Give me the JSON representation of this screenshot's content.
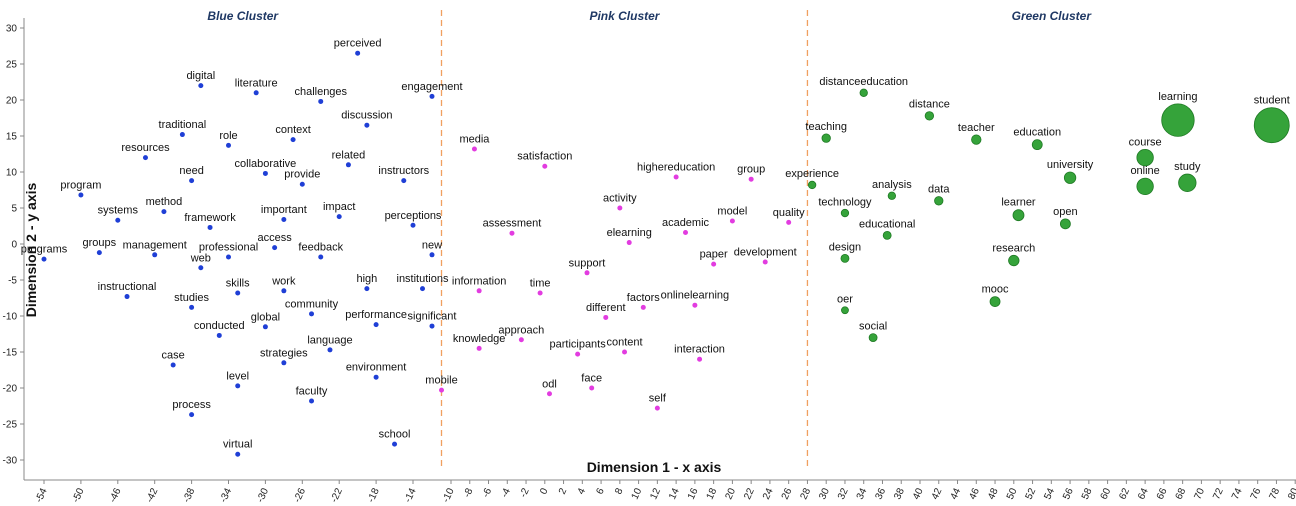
{
  "chart_data": {
    "type": "scatter",
    "xlabel": "Dimension 1 - x axis",
    "ylabel": "Dimension 2 - y axis",
    "xlim": [
      -56,
      81
    ],
    "ylim": [
      -32,
      31
    ],
    "xticks": [
      -54,
      -50,
      -46,
      -42,
      -38,
      -34,
      -30,
      -26,
      -22,
      -18,
      -14,
      -10,
      -8,
      -6,
      -4,
      -2,
      0,
      2,
      4,
      6,
      8,
      10,
      12,
      14,
      16,
      18,
      20,
      22,
      24,
      26,
      28,
      30,
      32,
      34,
      36,
      38,
      40,
      42,
      44,
      46,
      48,
      50,
      52,
      54,
      56,
      58,
      60,
      62,
      64,
      66,
      68,
      70,
      72,
      74,
      76,
      78,
      80
    ],
    "yticks": [
      -30,
      -25,
      -20,
      -15,
      -10,
      -5,
      0,
      5,
      10,
      15,
      20,
      25,
      30
    ],
    "separators_x": [
      -11,
      28
    ],
    "clusters": [
      {
        "name": "Blue Cluster",
        "color": "#1f3fd6"
      },
      {
        "name": "Pink Cluster",
        "color": "#e23ce0"
      },
      {
        "name": "Green Cluster",
        "color": "#35a33a"
      }
    ],
    "points": [
      {
        "label": "perceived",
        "x": -20,
        "y": 26.5,
        "cluster": 0,
        "size": 1
      },
      {
        "label": "digital",
        "x": -37,
        "y": 22,
        "cluster": 0,
        "size": 1
      },
      {
        "label": "literature",
        "x": -31,
        "y": 21,
        "cluster": 0,
        "size": 1
      },
      {
        "label": "challenges",
        "x": -24,
        "y": 19.8,
        "cluster": 0,
        "size": 1
      },
      {
        "label": "engagement",
        "x": -12,
        "y": 20.5,
        "cluster": 0,
        "size": 1
      },
      {
        "label": "discussion",
        "x": -19,
        "y": 16.5,
        "cluster": 0,
        "size": 1
      },
      {
        "label": "traditional",
        "x": -39,
        "y": 15.2,
        "cluster": 0,
        "size": 1
      },
      {
        "label": "role",
        "x": -34,
        "y": 13.7,
        "cluster": 0,
        "size": 1
      },
      {
        "label": "context",
        "x": -27,
        "y": 14.5,
        "cluster": 0,
        "size": 1
      },
      {
        "label": "resources",
        "x": -43,
        "y": 12,
        "cluster": 0,
        "size": 1
      },
      {
        "label": "related",
        "x": -21,
        "y": 11,
        "cluster": 0,
        "size": 1
      },
      {
        "label": "collaborative",
        "x": -30,
        "y": 9.8,
        "cluster": 0,
        "size": 1
      },
      {
        "label": "provide",
        "x": -26,
        "y": 8.3,
        "cluster": 0,
        "size": 1
      },
      {
        "label": "need",
        "x": -38,
        "y": 8.8,
        "cluster": 0,
        "size": 1
      },
      {
        "label": "instructors",
        "x": -15,
        "y": 8.8,
        "cluster": 0,
        "size": 1
      },
      {
        "label": "program",
        "x": -50,
        "y": 6.8,
        "cluster": 0,
        "size": 1
      },
      {
        "label": "systems",
        "x": -46,
        "y": 3.3,
        "cluster": 0,
        "size": 1
      },
      {
        "label": "method",
        "x": -41,
        "y": 4.5,
        "cluster": 0,
        "size": 1
      },
      {
        "label": "framework",
        "x": -36,
        "y": 2.3,
        "cluster": 0,
        "size": 1
      },
      {
        "label": "important",
        "x": -28,
        "y": 3.4,
        "cluster": 0,
        "size": 1
      },
      {
        "label": "impact",
        "x": -22,
        "y": 3.8,
        "cluster": 0,
        "size": 1
      },
      {
        "label": "perceptions",
        "x": -14,
        "y": 2.6,
        "cluster": 0,
        "size": 1
      },
      {
        "label": "access",
        "x": -29,
        "y": -0.5,
        "cluster": 0,
        "size": 1
      },
      {
        "label": "programs",
        "x": -54,
        "y": -2.1,
        "cluster": 0,
        "size": 1
      },
      {
        "label": "groups",
        "x": -48,
        "y": -1.2,
        "cluster": 0,
        "size": 1
      },
      {
        "label": "management",
        "x": -42,
        "y": -1.5,
        "cluster": 0,
        "size": 1
      },
      {
        "label": "professional",
        "x": -34,
        "y": -1.8,
        "cluster": 0,
        "size": 1
      },
      {
        "label": "web",
        "x": -37,
        "y": -3.3,
        "cluster": 0,
        "size": 1
      },
      {
        "label": "feedback",
        "x": -24,
        "y": -1.8,
        "cluster": 0,
        "size": 1
      },
      {
        "label": "new",
        "x": -12,
        "y": -1.5,
        "cluster": 0,
        "size": 1
      },
      {
        "label": "instructional",
        "x": -45,
        "y": -7.3,
        "cluster": 0,
        "size": 1
      },
      {
        "label": "skills",
        "x": -33,
        "y": -6.8,
        "cluster": 0,
        "size": 1
      },
      {
        "label": "work",
        "x": -28,
        "y": -6.5,
        "cluster": 0,
        "size": 1
      },
      {
        "label": "high",
        "x": -19,
        "y": -6.2,
        "cluster": 0,
        "size": 1
      },
      {
        "label": "institutions",
        "x": -13,
        "y": -6.2,
        "cluster": 0,
        "size": 1
      },
      {
        "label": "studies",
        "x": -38,
        "y": -8.8,
        "cluster": 0,
        "size": 1
      },
      {
        "label": "community",
        "x": -25,
        "y": -9.7,
        "cluster": 0,
        "size": 1
      },
      {
        "label": "global",
        "x": -30,
        "y": -11.5,
        "cluster": 0,
        "size": 1
      },
      {
        "label": "performance",
        "x": -18,
        "y": -11.2,
        "cluster": 0,
        "size": 1
      },
      {
        "label": "significant",
        "x": -12,
        "y": -11.4,
        "cluster": 0,
        "size": 1
      },
      {
        "label": "conducted",
        "x": -35,
        "y": -12.7,
        "cluster": 0,
        "size": 1
      },
      {
        "label": "language",
        "x": -23,
        "y": -14.7,
        "cluster": 0,
        "size": 1
      },
      {
        "label": "strategies",
        "x": -28,
        "y": -16.5,
        "cluster": 0,
        "size": 1
      },
      {
        "label": "case",
        "x": -40,
        "y": -16.8,
        "cluster": 0,
        "size": 1
      },
      {
        "label": "environment",
        "x": -18,
        "y": -18.5,
        "cluster": 0,
        "size": 1
      },
      {
        "label": "level",
        "x": -33,
        "y": -19.7,
        "cluster": 0,
        "size": 1
      },
      {
        "label": "faculty",
        "x": -25,
        "y": -21.8,
        "cluster": 0,
        "size": 1
      },
      {
        "label": "process",
        "x": -38,
        "y": -23.7,
        "cluster": 0,
        "size": 1
      },
      {
        "label": "school",
        "x": -16,
        "y": -27.8,
        "cluster": 0,
        "size": 1
      },
      {
        "label": "virtual",
        "x": -33,
        "y": -29.2,
        "cluster": 0,
        "size": 1
      },
      {
        "label": "media",
        "x": -7.5,
        "y": 13.2,
        "cluster": 1,
        "size": 1
      },
      {
        "label": "satisfaction",
        "x": 0,
        "y": 10.8,
        "cluster": 1,
        "size": 1
      },
      {
        "label": "highereducation",
        "x": 14,
        "y": 9.3,
        "cluster": 1,
        "size": 1
      },
      {
        "label": "group",
        "x": 22,
        "y": 9,
        "cluster": 1,
        "size": 1
      },
      {
        "label": "activity",
        "x": 8,
        "y": 5,
        "cluster": 1,
        "size": 1
      },
      {
        "label": "model",
        "x": 20,
        "y": 3.2,
        "cluster": 1,
        "size": 1
      },
      {
        "label": "quality",
        "x": 26,
        "y": 3,
        "cluster": 1,
        "size": 1
      },
      {
        "label": "assessment",
        "x": -3.5,
        "y": 1.5,
        "cluster": 1,
        "size": 1
      },
      {
        "label": "elearning",
        "x": 9,
        "y": 0.2,
        "cluster": 1,
        "size": 1
      },
      {
        "label": "academic",
        "x": 15,
        "y": 1.6,
        "cluster": 1,
        "size": 1
      },
      {
        "label": "paper",
        "x": 18,
        "y": -2.8,
        "cluster": 1,
        "size": 1
      },
      {
        "label": "development",
        "x": 23.5,
        "y": -2.5,
        "cluster": 1,
        "size": 1
      },
      {
        "label": "support",
        "x": 4.5,
        "y": -4,
        "cluster": 1,
        "size": 1
      },
      {
        "label": "information",
        "x": -7,
        "y": -6.5,
        "cluster": 1,
        "size": 1
      },
      {
        "label": "time",
        "x": -0.5,
        "y": -6.8,
        "cluster": 1,
        "size": 1
      },
      {
        "label": "different",
        "x": 6.5,
        "y": -10.2,
        "cluster": 1,
        "size": 1
      },
      {
        "label": "factors",
        "x": 10.5,
        "y": -8.8,
        "cluster": 1,
        "size": 1
      },
      {
        "label": "onlinelearning",
        "x": 16,
        "y": -8.5,
        "cluster": 1,
        "size": 1
      },
      {
        "label": "approach",
        "x": -2.5,
        "y": -13.3,
        "cluster": 1,
        "size": 1
      },
      {
        "label": "knowledge",
        "x": -7,
        "y": -14.5,
        "cluster": 1,
        "size": 1
      },
      {
        "label": "participants",
        "x": 3.5,
        "y": -15.3,
        "cluster": 1,
        "size": 1
      },
      {
        "label": "content",
        "x": 8.5,
        "y": -15,
        "cluster": 1,
        "size": 1
      },
      {
        "label": "interaction",
        "x": 16.5,
        "y": -16,
        "cluster": 1,
        "size": 1
      },
      {
        "label": "mobile",
        "x": -11,
        "y": -20.3,
        "cluster": 1,
        "size": 1
      },
      {
        "label": "odl",
        "x": 0.5,
        "y": -20.8,
        "cluster": 1,
        "size": 1
      },
      {
        "label": "face",
        "x": 5,
        "y": -20,
        "cluster": 1,
        "size": 1
      },
      {
        "label": "self",
        "x": 12,
        "y": -22.8,
        "cluster": 1,
        "size": 1
      },
      {
        "label": "distanceeducation",
        "x": 34,
        "y": 21,
        "cluster": 2,
        "size": 1.5
      },
      {
        "label": "distance",
        "x": 41,
        "y": 17.8,
        "cluster": 2,
        "size": 1.7
      },
      {
        "label": "teaching",
        "x": 30,
        "y": 14.7,
        "cluster": 2,
        "size": 1.7
      },
      {
        "label": "teacher",
        "x": 46,
        "y": 14.5,
        "cluster": 2,
        "size": 1.9
      },
      {
        "label": "education",
        "x": 52.5,
        "y": 13.8,
        "cluster": 2,
        "size": 2
      },
      {
        "label": "learning",
        "x": 67.5,
        "y": 17.2,
        "cluster": 2,
        "size": 6.5
      },
      {
        "label": "student",
        "x": 77.5,
        "y": 16.5,
        "cluster": 2,
        "size": 7
      },
      {
        "label": "course",
        "x": 64,
        "y": 12,
        "cluster": 2,
        "size": 3.3
      },
      {
        "label": "university",
        "x": 56,
        "y": 9.2,
        "cluster": 2,
        "size": 2.3
      },
      {
        "label": "experience",
        "x": 28.5,
        "y": 8.2,
        "cluster": 2,
        "size": 1.5
      },
      {
        "label": "online",
        "x": 64,
        "y": 8,
        "cluster": 2,
        "size": 3.3
      },
      {
        "label": "study",
        "x": 68.5,
        "y": 8.5,
        "cluster": 2,
        "size": 3.5
      },
      {
        "label": "analysis",
        "x": 37,
        "y": 6.7,
        "cluster": 2,
        "size": 1.5
      },
      {
        "label": "data",
        "x": 42,
        "y": 6,
        "cluster": 2,
        "size": 1.7
      },
      {
        "label": "technology",
        "x": 32,
        "y": 4.3,
        "cluster": 2,
        "size": 1.5
      },
      {
        "label": "learner",
        "x": 50.5,
        "y": 4,
        "cluster": 2,
        "size": 2.2
      },
      {
        "label": "open",
        "x": 55.5,
        "y": 2.8,
        "cluster": 2,
        "size": 2
      },
      {
        "label": "educational",
        "x": 36.5,
        "y": 1.2,
        "cluster": 2,
        "size": 1.6
      },
      {
        "label": "design",
        "x": 32,
        "y": -2,
        "cluster": 2,
        "size": 1.6
      },
      {
        "label": "research",
        "x": 50,
        "y": -2.3,
        "cluster": 2,
        "size": 2.1
      },
      {
        "label": "mooc",
        "x": 48,
        "y": -8,
        "cluster": 2,
        "size": 2
      },
      {
        "label": "oer",
        "x": 32,
        "y": -9.2,
        "cluster": 2,
        "size": 1.4
      },
      {
        "label": "social",
        "x": 35,
        "y": -13,
        "cluster": 2,
        "size": 1.6
      }
    ]
  }
}
